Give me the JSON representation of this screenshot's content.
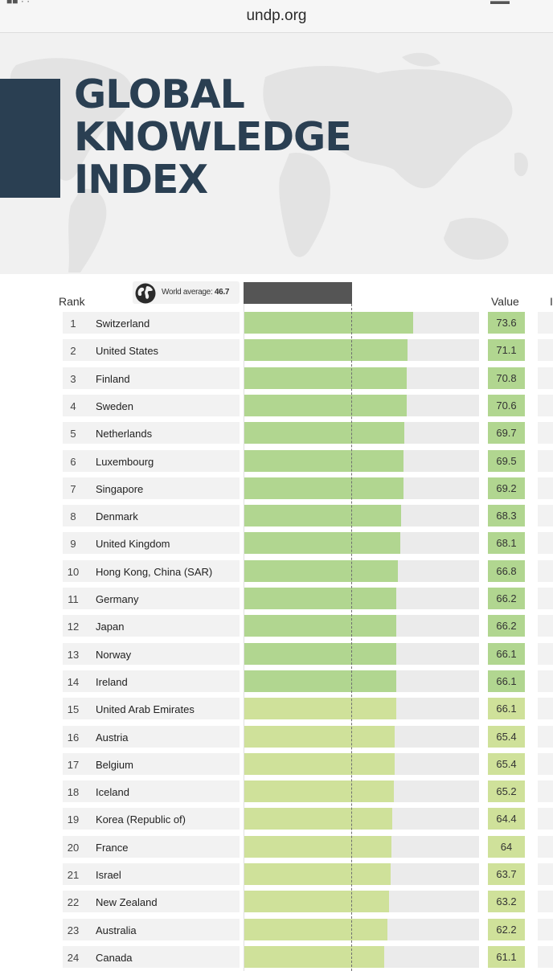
{
  "browser": {
    "url": "undp.org"
  },
  "hero": {
    "title_lines": [
      "GLOBAL",
      "KNOWLEDGE",
      "INDEX"
    ]
  },
  "colors": {
    "navy": "#2a3f52",
    "bar_green": "#b1d690",
    "bar_yellowgreen": "#cfe19a",
    "track": "#ebebeb",
    "avg_band": "#555555"
  },
  "chart_data": {
    "type": "bar",
    "orientation": "horizontal",
    "headers": {
      "rank": "Rank",
      "value": "Value"
    },
    "world_average": {
      "label": "World average:",
      "value": 46.7
    },
    "xlim": [
      0,
      100
    ],
    "rows": [
      {
        "rank": 1,
        "country": "Switzerland",
        "value": 73.6,
        "value_label": "73.6"
      },
      {
        "rank": 2,
        "country": "United States",
        "value": 71.1,
        "value_label": "71.1"
      },
      {
        "rank": 3,
        "country": "Finland",
        "value": 70.8,
        "value_label": "70.8"
      },
      {
        "rank": 4,
        "country": "Sweden",
        "value": 70.6,
        "value_label": "70.6"
      },
      {
        "rank": 5,
        "country": "Netherlands",
        "value": 69.7,
        "value_label": "69.7"
      },
      {
        "rank": 6,
        "country": "Luxembourg",
        "value": 69.5,
        "value_label": "69.5"
      },
      {
        "rank": 7,
        "country": "Singapore",
        "value": 69.2,
        "value_label": "69.2"
      },
      {
        "rank": 8,
        "country": "Denmark",
        "value": 68.3,
        "value_label": "68.3"
      },
      {
        "rank": 9,
        "country": "United Kingdom",
        "value": 68.1,
        "value_label": "68.1"
      },
      {
        "rank": 10,
        "country": "Hong Kong, China (SAR)",
        "value": 66.8,
        "value_label": "66.8"
      },
      {
        "rank": 11,
        "country": "Germany",
        "value": 66.2,
        "value_label": "66.2"
      },
      {
        "rank": 12,
        "country": "Japan",
        "value": 66.2,
        "value_label": "66.2"
      },
      {
        "rank": 13,
        "country": "Norway",
        "value": 66.1,
        "value_label": "66.1"
      },
      {
        "rank": 14,
        "country": "Ireland",
        "value": 66.1,
        "value_label": "66.1"
      },
      {
        "rank": 15,
        "country": "United Arab Emirates",
        "value": 66.1,
        "value_label": "66.1"
      },
      {
        "rank": 16,
        "country": "Austria",
        "value": 65.4,
        "value_label": "65.4"
      },
      {
        "rank": 17,
        "country": "Belgium",
        "value": 65.4,
        "value_label": "65.4"
      },
      {
        "rank": 18,
        "country": "Iceland",
        "value": 65.2,
        "value_label": "65.2"
      },
      {
        "rank": 19,
        "country": "Korea (Republic of)",
        "value": 64.4,
        "value_label": "64.4"
      },
      {
        "rank": 20,
        "country": "France",
        "value": 64,
        "value_label": "64"
      },
      {
        "rank": 21,
        "country": "Israel",
        "value": 63.7,
        "value_label": "63.7"
      },
      {
        "rank": 22,
        "country": "New Zealand",
        "value": 63.2,
        "value_label": "63.2"
      },
      {
        "rank": 23,
        "country": "Australia",
        "value": 62.2,
        "value_label": "62.2"
      },
      {
        "rank": 24,
        "country": "Canada",
        "value": 61.1,
        "value_label": "61.1"
      }
    ]
  }
}
